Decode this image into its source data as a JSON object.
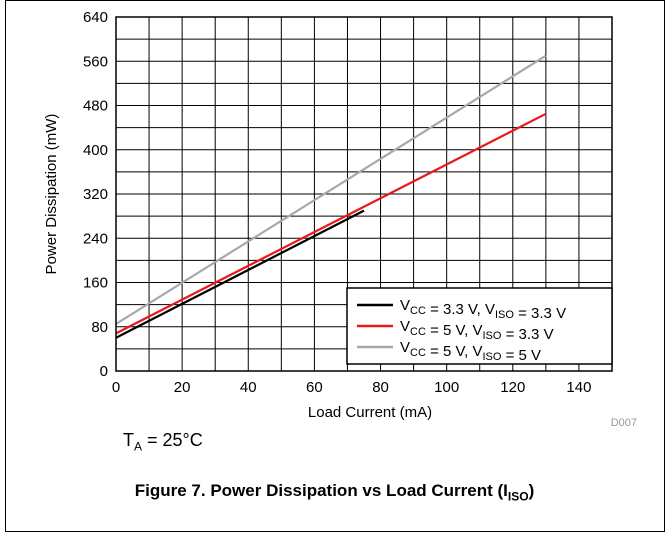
{
  "chart_data": {
    "type": "line",
    "xlabel": "Load Current (mA)",
    "ylabel": "Power Dissipation (mW)",
    "xlim": [
      0,
      150
    ],
    "ylim": [
      0,
      640
    ],
    "xticks": [
      0,
      20,
      40,
      60,
      80,
      100,
      120,
      140
    ],
    "yticks": [
      0,
      80,
      160,
      240,
      320,
      400,
      480,
      560,
      640
    ],
    "grid": true,
    "legend_position": "bottom-right",
    "series": [
      {
        "name_parts": [
          [
            "V",
            "CC"
          ],
          [
            " = 3.3 V, "
          ],
          [
            "V",
            "ISO"
          ],
          [
            " = 3.3 V"
          ]
        ],
        "color": "#000000",
        "x": [
          0,
          75
        ],
        "y": [
          60,
          290
        ]
      },
      {
        "name_parts": [
          [
            "V",
            "CC"
          ],
          [
            " = 5 V, "
          ],
          [
            "V",
            "ISO"
          ],
          [
            " = 3.3 V"
          ]
        ],
        "color": "#e8191d",
        "x": [
          0,
          130
        ],
        "y": [
          68,
          465
        ]
      },
      {
        "name_parts": [
          [
            "V",
            "CC"
          ],
          [
            " = 5 V, "
          ],
          [
            "V",
            "ISO"
          ],
          [
            " = 5 V"
          ]
        ],
        "color": "#a8a8a8",
        "x": [
          0,
          130
        ],
        "y": [
          85,
          570
        ]
      }
    ],
    "tag": "D007"
  },
  "note": {
    "main": "T",
    "sub": "A",
    "rest": " = 25°C"
  },
  "caption": {
    "main": "Figure 7. Power Dissipation vs Load Current (I",
    "sub": "ISO",
    "end": ")"
  }
}
